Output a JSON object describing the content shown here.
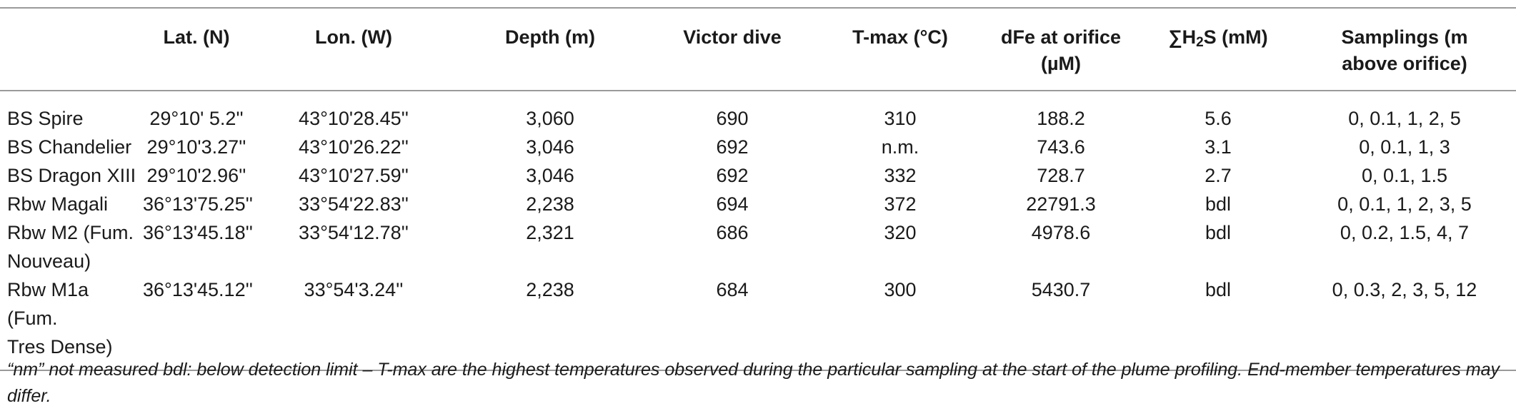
{
  "table": {
    "headers": [
      "",
      "Lat. (N)",
      "Lon. (W)",
      "Depth (m)",
      "Victor dive",
      "T-max (°C)",
      "dFe at orifice (µM)",
      "∑H2S (mM)",
      "Samplings (m above orifice)"
    ],
    "header_parts": {
      "h2s_prefix": "∑H",
      "h2s_sub": "2",
      "h2s_suffix": "S (mM)",
      "dfe_line1": "dFe at orifice",
      "dfe_line2": "(µM)",
      "samp_line1": "Samplings (m",
      "samp_line2": "above orifice)"
    },
    "rows": [
      {
        "label_lines": [
          "BS Spire"
        ],
        "lat": "29°10' 5.2''",
        "lon": "43°10'28.45''",
        "depth": "3,060",
        "dive": "690",
        "tmax": "310",
        "dfe": "188.2",
        "h2s": "5.6",
        "samplings": "0, 0.1, 1, 2, 5"
      },
      {
        "label_lines": [
          "BS Chandelier"
        ],
        "lat": "29°10'3.27''",
        "lon": "43°10'26.22''",
        "depth": "3,046",
        "dive": "692",
        "tmax": "n.m.",
        "dfe": "743.6",
        "h2s": "3.1",
        "samplings": "0, 0.1, 1, 3"
      },
      {
        "label_lines": [
          "BS Dragon XIII"
        ],
        "lat": "29°10'2.96''",
        "lon": "43°10'27.59''",
        "depth": "3,046",
        "dive": "692",
        "tmax": "332",
        "dfe": "728.7",
        "h2s": "2.7",
        "samplings": "0, 0.1, 1.5"
      },
      {
        "label_lines": [
          "Rbw Magali"
        ],
        "lat": "36°13'75.25''",
        "lon": "33°54'22.83''",
        "depth": "2,238",
        "dive": "694",
        "tmax": "372",
        "dfe": "22791.3",
        "h2s": "bdl",
        "samplings": "0, 0.1, 1, 2, 3, 5"
      },
      {
        "label_lines": [
          "Rbw M2 (Fum.",
          "Nouveau)"
        ],
        "lat": "36°13'45.18''",
        "lon": "33°54'12.78''",
        "depth": "2,321",
        "dive": "686",
        "tmax": "320",
        "dfe": "4978.6",
        "h2s": "bdl",
        "samplings": "0, 0.2, 1.5, 4, 7"
      },
      {
        "label_lines": [
          "Rbw M1a (Fum.",
          "Tres Dense)"
        ],
        "lat": "36°13'45.12''",
        "lon": "33°54'3.24''",
        "depth": "2,238",
        "dive": "684",
        "tmax": "300",
        "dfe": "5430.7",
        "h2s": "bdl",
        "samplings": "0, 0.3, 2, 3, 5, 12"
      }
    ]
  },
  "footnote": "“nm” not measured bdl: below detection limit – T-max are the highest temperatures observed during the particular sampling at the start of the plume profiling. End-member temperatures may differ."
}
